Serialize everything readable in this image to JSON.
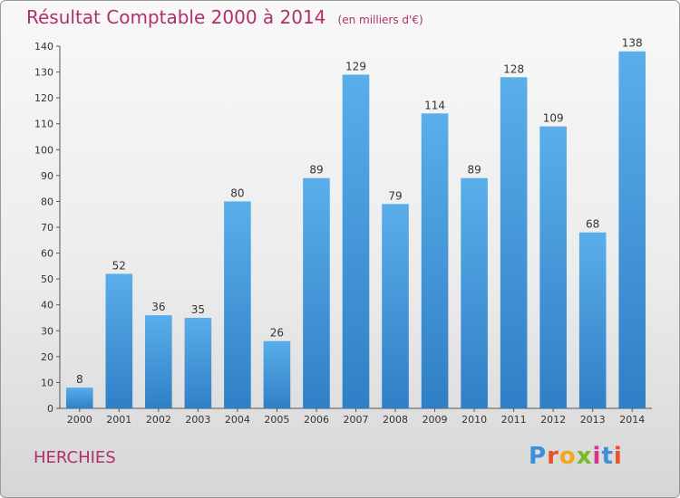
{
  "chart_data": {
    "type": "bar",
    "title": "Résultat Comptable 2000 à 2014",
    "subtitle": "(en milliers d'€)",
    "xlabel": "",
    "ylabel": "",
    "categories": [
      "2000",
      "2001",
      "2002",
      "2003",
      "2004",
      "2005",
      "2006",
      "2007",
      "2008",
      "2009",
      "2010",
      "2011",
      "2012",
      "2013",
      "2014"
    ],
    "values": [
      8,
      52,
      36,
      35,
      80,
      26,
      89,
      129,
      79,
      114,
      89,
      128,
      109,
      68,
      138
    ],
    "ylim": [
      0,
      140
    ],
    "yticks": [
      0,
      10,
      20,
      30,
      40,
      50,
      60,
      70,
      80,
      90,
      100,
      110,
      120,
      130,
      140
    ],
    "grid": false,
    "data_labels": true,
    "bar_color": "#4a9ee0"
  },
  "footer": {
    "commune": "HERCHIES",
    "logo_letters": [
      "P",
      "r",
      "o",
      "x",
      "i",
      "t",
      "i"
    ],
    "logo_colors": [
      "#3c8fd8",
      "#e8512a",
      "#f2a81d",
      "#7bb927",
      "#d8338a",
      "#3c8fd8",
      "#e8512a"
    ]
  }
}
